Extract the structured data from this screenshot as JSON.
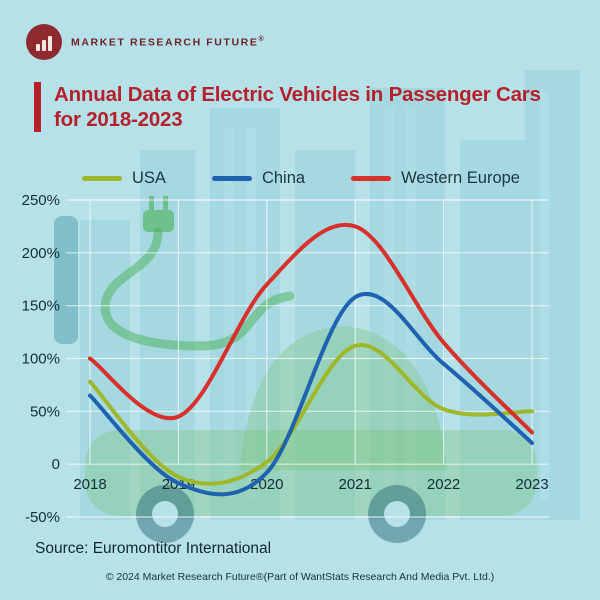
{
  "logo": {
    "brand": "MARKET RESEARCH FUTURE",
    "reg": "®"
  },
  "title": {
    "line1": "Annual Data of Electric Vehicles in Passenger Cars",
    "line2": "for 2018-2023"
  },
  "legend": [
    {
      "label": "USA",
      "color": "#9fb82b"
    },
    {
      "label": "China",
      "color": "#1f62b0"
    },
    {
      "label": "Western Europe",
      "color": "#d8302b"
    }
  ],
  "chart_data": {
    "type": "line",
    "title": "Annual Data of Electric Vehicles in Passenger Cars for 2018-2023",
    "xlabel": "",
    "ylabel": "",
    "x": [
      2018,
      2019,
      2020,
      2021,
      2022,
      2023
    ],
    "series": [
      {
        "name": "USA",
        "color": "#9fb82b",
        "values": [
          78,
          -12,
          2,
          112,
          52,
          50
        ]
      },
      {
        "name": "China",
        "color": "#1f62b0",
        "values": [
          65,
          -18,
          -8,
          158,
          95,
          20
        ]
      },
      {
        "name": "Western Europe",
        "color": "#d8302b",
        "values": [
          100,
          45,
          170,
          225,
          115,
          30
        ]
      }
    ],
    "ylim": [
      -50,
      250
    ],
    "yticks": [
      250,
      200,
      150,
      100,
      50,
      0,
      -50
    ],
    "ytick_labels": [
      "250%",
      "200%",
      "150%",
      "100%",
      "50%",
      "0",
      "-50%"
    ],
    "grid": true,
    "legend_position": "top"
  },
  "source": "Source: Euromontitor International",
  "copyright": "© 2024 Market Research Future®(Part of WantStats Research And Media Pvt. Ltd.)"
}
